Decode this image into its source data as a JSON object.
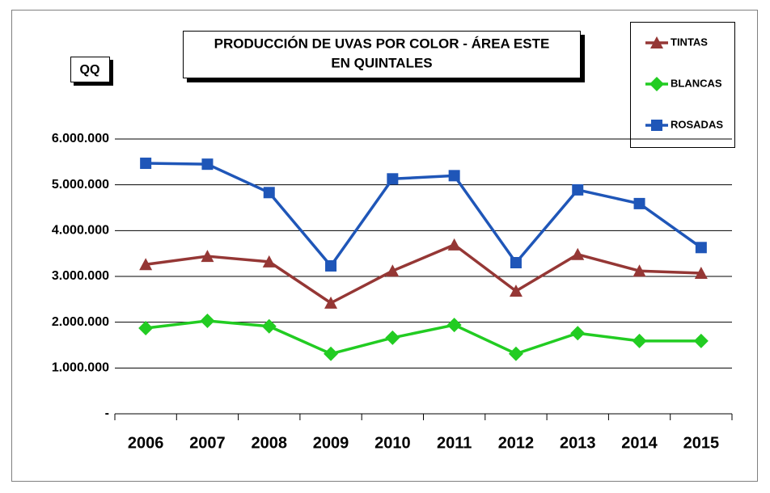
{
  "chart_data": {
    "type": "line",
    "title": "PRODUCCIÓN DE UVAS POR COLOR - ÁREA ESTE",
    "subtitle": "EN QUINTALES",
    "y_label": "QQ",
    "categories": [
      "2006",
      "2007",
      "2008",
      "2009",
      "2010",
      "2011",
      "2012",
      "2013",
      "2014",
      "2015"
    ],
    "series": [
      {
        "name": "TINTAS",
        "color": "#953735",
        "marker": "triangle",
        "values": [
          3260000,
          3440000,
          3320000,
          2420000,
          3120000,
          3690000,
          2680000,
          3480000,
          3120000,
          3070000
        ]
      },
      {
        "name": "BLANCAS",
        "color": "#22cc22",
        "marker": "diamond",
        "values": [
          1870000,
          2030000,
          1910000,
          1310000,
          1660000,
          1940000,
          1310000,
          1760000,
          1590000,
          1590000
        ]
      },
      {
        "name": "ROSADAS",
        "color": "#1f56b8",
        "marker": "square",
        "values": [
          5470000,
          5450000,
          4830000,
          3230000,
          5130000,
          5200000,
          3300000,
          4890000,
          4590000,
          3630000
        ]
      }
    ],
    "ylim": [
      0,
      6000000
    ],
    "yticks": [
      {
        "value": 0,
        "label": "-"
      },
      {
        "value": 1000000,
        "label": "1.000.000"
      },
      {
        "value": 2000000,
        "label": "2.000.000"
      },
      {
        "value": 3000000,
        "label": "3.000.000"
      },
      {
        "value": 4000000,
        "label": "4.000.000"
      },
      {
        "value": 5000000,
        "label": "5.000.000"
      },
      {
        "value": 6000000,
        "label": "6.000.000"
      }
    ],
    "grid": true,
    "legend": "top-right"
  }
}
